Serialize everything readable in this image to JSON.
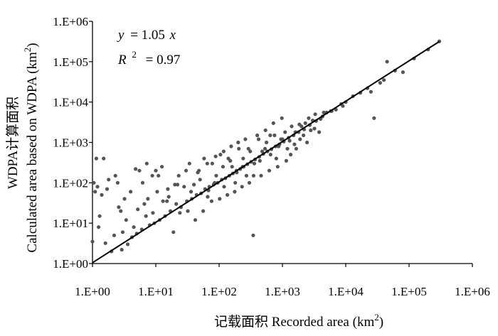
{
  "chart_data": {
    "type": "scatter",
    "title": "",
    "xlabel": "记载面积 Recorded area (km²)",
    "xlabel_main": "记载面积 Recorded area (km",
    "xlabel_sup": "2",
    "xlabel_close": ")",
    "ylabel_line1": "WDPA计算面积",
    "ylabel_line2_main": "Calculated area based on WDPA (km",
    "ylabel_line2_sup": "2",
    "ylabel_line2_close": ")",
    "x_scale": "log",
    "y_scale": "log",
    "xlim": [
      1,
      1000000
    ],
    "ylim": [
      1,
      1000000
    ],
    "x_ticks": [
      "1.E+00",
      "1.E+01",
      "1.E+02",
      "1.E+03",
      "1.E+04",
      "1.E+05",
      "1.E+06"
    ],
    "y_ticks": [
      "1.E+00",
      "1.E+01",
      "1.E+02",
      "1.E+03",
      "1.E+04",
      "1.E+05",
      "1.E+06"
    ],
    "grid": false,
    "legend": "none",
    "point_color": "#555555",
    "fit_line": {
      "equation_y": "y",
      "equation_rhs": "= 1.05",
      "equation_x": "x",
      "r2_label": "R",
      "r2_sup": "2",
      "r2_value": "= 0.97",
      "slope": 1.05,
      "x_range": [
        1,
        300000
      ],
      "color": "#000000"
    },
    "series": [
      {
        "x": [
          1.0,
          1.15,
          1.2,
          1.3,
          1.4,
          1.6,
          1.8,
          2.0,
          2.3,
          2.6,
          2.9,
          3.2,
          3.6,
          4.0,
          4.5,
          5.0,
          5.5,
          6.0,
          6.6,
          7.2,
          8.0,
          8.8,
          9.5,
          10.5,
          11.5,
          12.5,
          14.0,
          15.5,
          17.0,
          19.0,
          21.0,
          23.0,
          25.0,
          28.0,
          31.0,
          34.0,
          37.0,
          40.0,
          44.0,
          48.0,
          52.0,
          56.0,
          60.0,
          65.0,
          70.0,
          76.0,
          82.0,
          88.0,
          95.0,
          102.0,
          110.0,
          118.0,
          126.0,
          135.0,
          145.0,
          155.0,
          165.0,
          176.0,
          188.0,
          200.0,
          215.0,
          230.0,
          245.0,
          260.0,
          280.0,
          300.0,
          320.0,
          345.0,
          370.0,
          400.0,
          430.0,
          460.0,
          500.0,
          540.0,
          580.0,
          620.0,
          670.0,
          720.0,
          780.0,
          840.0,
          900.0,
          980.0,
          1050.0,
          1150.0,
          1250.0,
          1350.0,
          1500.0,
          1650.0,
          1800.0,
          2000.0,
          2200.0,
          2450.0,
          2700.0,
          3000.0,
          3400.0,
          3800.0,
          4300.0,
          5000.0,
          5800.0,
          7000.0,
          8500.0,
          10000.0,
          13000.0,
          17000.0,
          22000.0,
          28000.0,
          35000.0,
          45000.0,
          60000.0,
          80000.0,
          120000.0,
          200000.0,
          300000.0,
          1.05,
          1.25,
          1.7,
          2.2,
          2.8,
          3.4,
          4.2,
          5.2,
          6.2,
          7.5,
          9.0,
          11.0,
          13.0,
          16.0,
          20.0,
          24.0,
          30.0,
          36.0,
          42.0,
          50.0,
          58.0,
          68.0,
          78.0,
          90.0,
          105.0,
          120.0,
          140.0,
          160.0,
          180.0,
          205.0,
          235.0,
          270.0,
          310.0,
          360.0,
          420.0,
          480.0,
          560.0,
          650.0,
          750.0,
          870.0,
          1000.0,
          1200.0,
          1400.0,
          1600.0,
          1900.0,
          2300.0,
          2800.0,
          3300.0,
          4000.0,
          25000.0,
          40000.0,
          1.1,
          1.5,
          2.5,
          3.0,
          4.8,
          7.0,
          10.0,
          15.0,
          22.0,
          32.0,
          46.0,
          66.0,
          85.0,
          115.0,
          150.0,
          190.0,
          240.0,
          290.0,
          350.0,
          440.0,
          530.0,
          640.0,
          800.0,
          950.0,
          1100.0,
          1300.0,
          1550.0,
          1850.0,
          2150.0,
          2600.0,
          3200.0,
          4500.0,
          6000.0,
          9000.0
        ],
        "y": [
          3.5,
          400.0,
          80.0,
          15.0,
          50.0,
          3.2,
          120.0,
          2.0,
          150.0,
          25.0,
          2.2,
          40.0,
          3.0,
          60.0,
          8.0,
          5.5,
          200.0,
          7.0,
          30.0,
          300.0,
          9.0,
          150.0,
          10.0,
          60.0,
          12.0,
          250.0,
          15.0,
          70.0,
          20.0,
          6.0,
          30.0,
          150.0,
          25.0,
          80.0,
          35.0,
          300.0,
          40.0,
          90.0,
          50.0,
          200.0,
          55.0,
          20.0,
          70.0,
          300.0,
          80.0,
          35.0,
          90.0,
          450.0,
          100.0,
          40.0,
          120.0,
          600.0,
          130.0,
          50.0,
          150.0,
          800.0,
          170.0,
          60.0,
          200.0,
          1000.0,
          220.0,
          80.0,
          250.0,
          1200.0,
          290.0,
          100.0,
          330.0,
          5.0,
          380.0,
          1500.0,
          440.0,
          150.0,
          520.0,
          2000.0,
          600.0,
          200.0,
          680.0,
          3000.0,
          800.0,
          250.0,
          900.0,
          4000.0,
          1050.0,
          350.0,
          1300.0,
          500.0,
          1500.0,
          700.0,
          1800.0,
          2500.0,
          2100.0,
          1000.0,
          2700.0,
          3500.0,
          3400.0,
          1800.0,
          4400.0,
          5500.0,
          6000.0,
          6500.0,
          9000.0,
          10000.0,
          14000.0,
          17000.0,
          22000.0,
          4000.0,
          30000.0,
          100000.0,
          60000.0,
          55000.0,
          120000.0,
          200000.0,
          320000.0,
          100.0,
          8.0,
          70.0,
          5.0,
          20.0,
          12.0,
          4.5,
          22.0,
          100.0,
          40.0,
          18.0,
          150.0,
          35.0,
          45.0,
          90.0,
          18.0,
          200.0,
          60.0,
          12.0,
          120.0,
          400.0,
          65.0,
          300.0,
          150.0,
          500.0,
          80.0,
          400.0,
          250.0,
          100.0,
          700.0,
          250.0,
          150.0,
          600.0,
          300.0,
          1200.0,
          600.0,
          1000.0,
          500.0,
          1500.0,
          800.0,
          1200.0,
          700.0,
          2500.0,
          1800.0,
          1200.0,
          3000.0,
          2000.0,
          5000.0,
          3800.0,
          18000.0,
          35000.0,
          60.0,
          400.0,
          100.0,
          6.0,
          220.0,
          15.0,
          200.0,
          35.0,
          90.0,
          20.0,
          180.0,
          45.0,
          100.0,
          250.0,
          350.0,
          180.0,
          400.0,
          700.0,
          150.0,
          350.0,
          700.0,
          1500.0,
          400.0,
          1200.0,
          1800.0,
          1100.0,
          900.0,
          2800.0,
          1500.0,
          4000.0,
          2200.0,
          5500.0,
          6000.0,
          8000.0
        ]
      }
    ]
  }
}
